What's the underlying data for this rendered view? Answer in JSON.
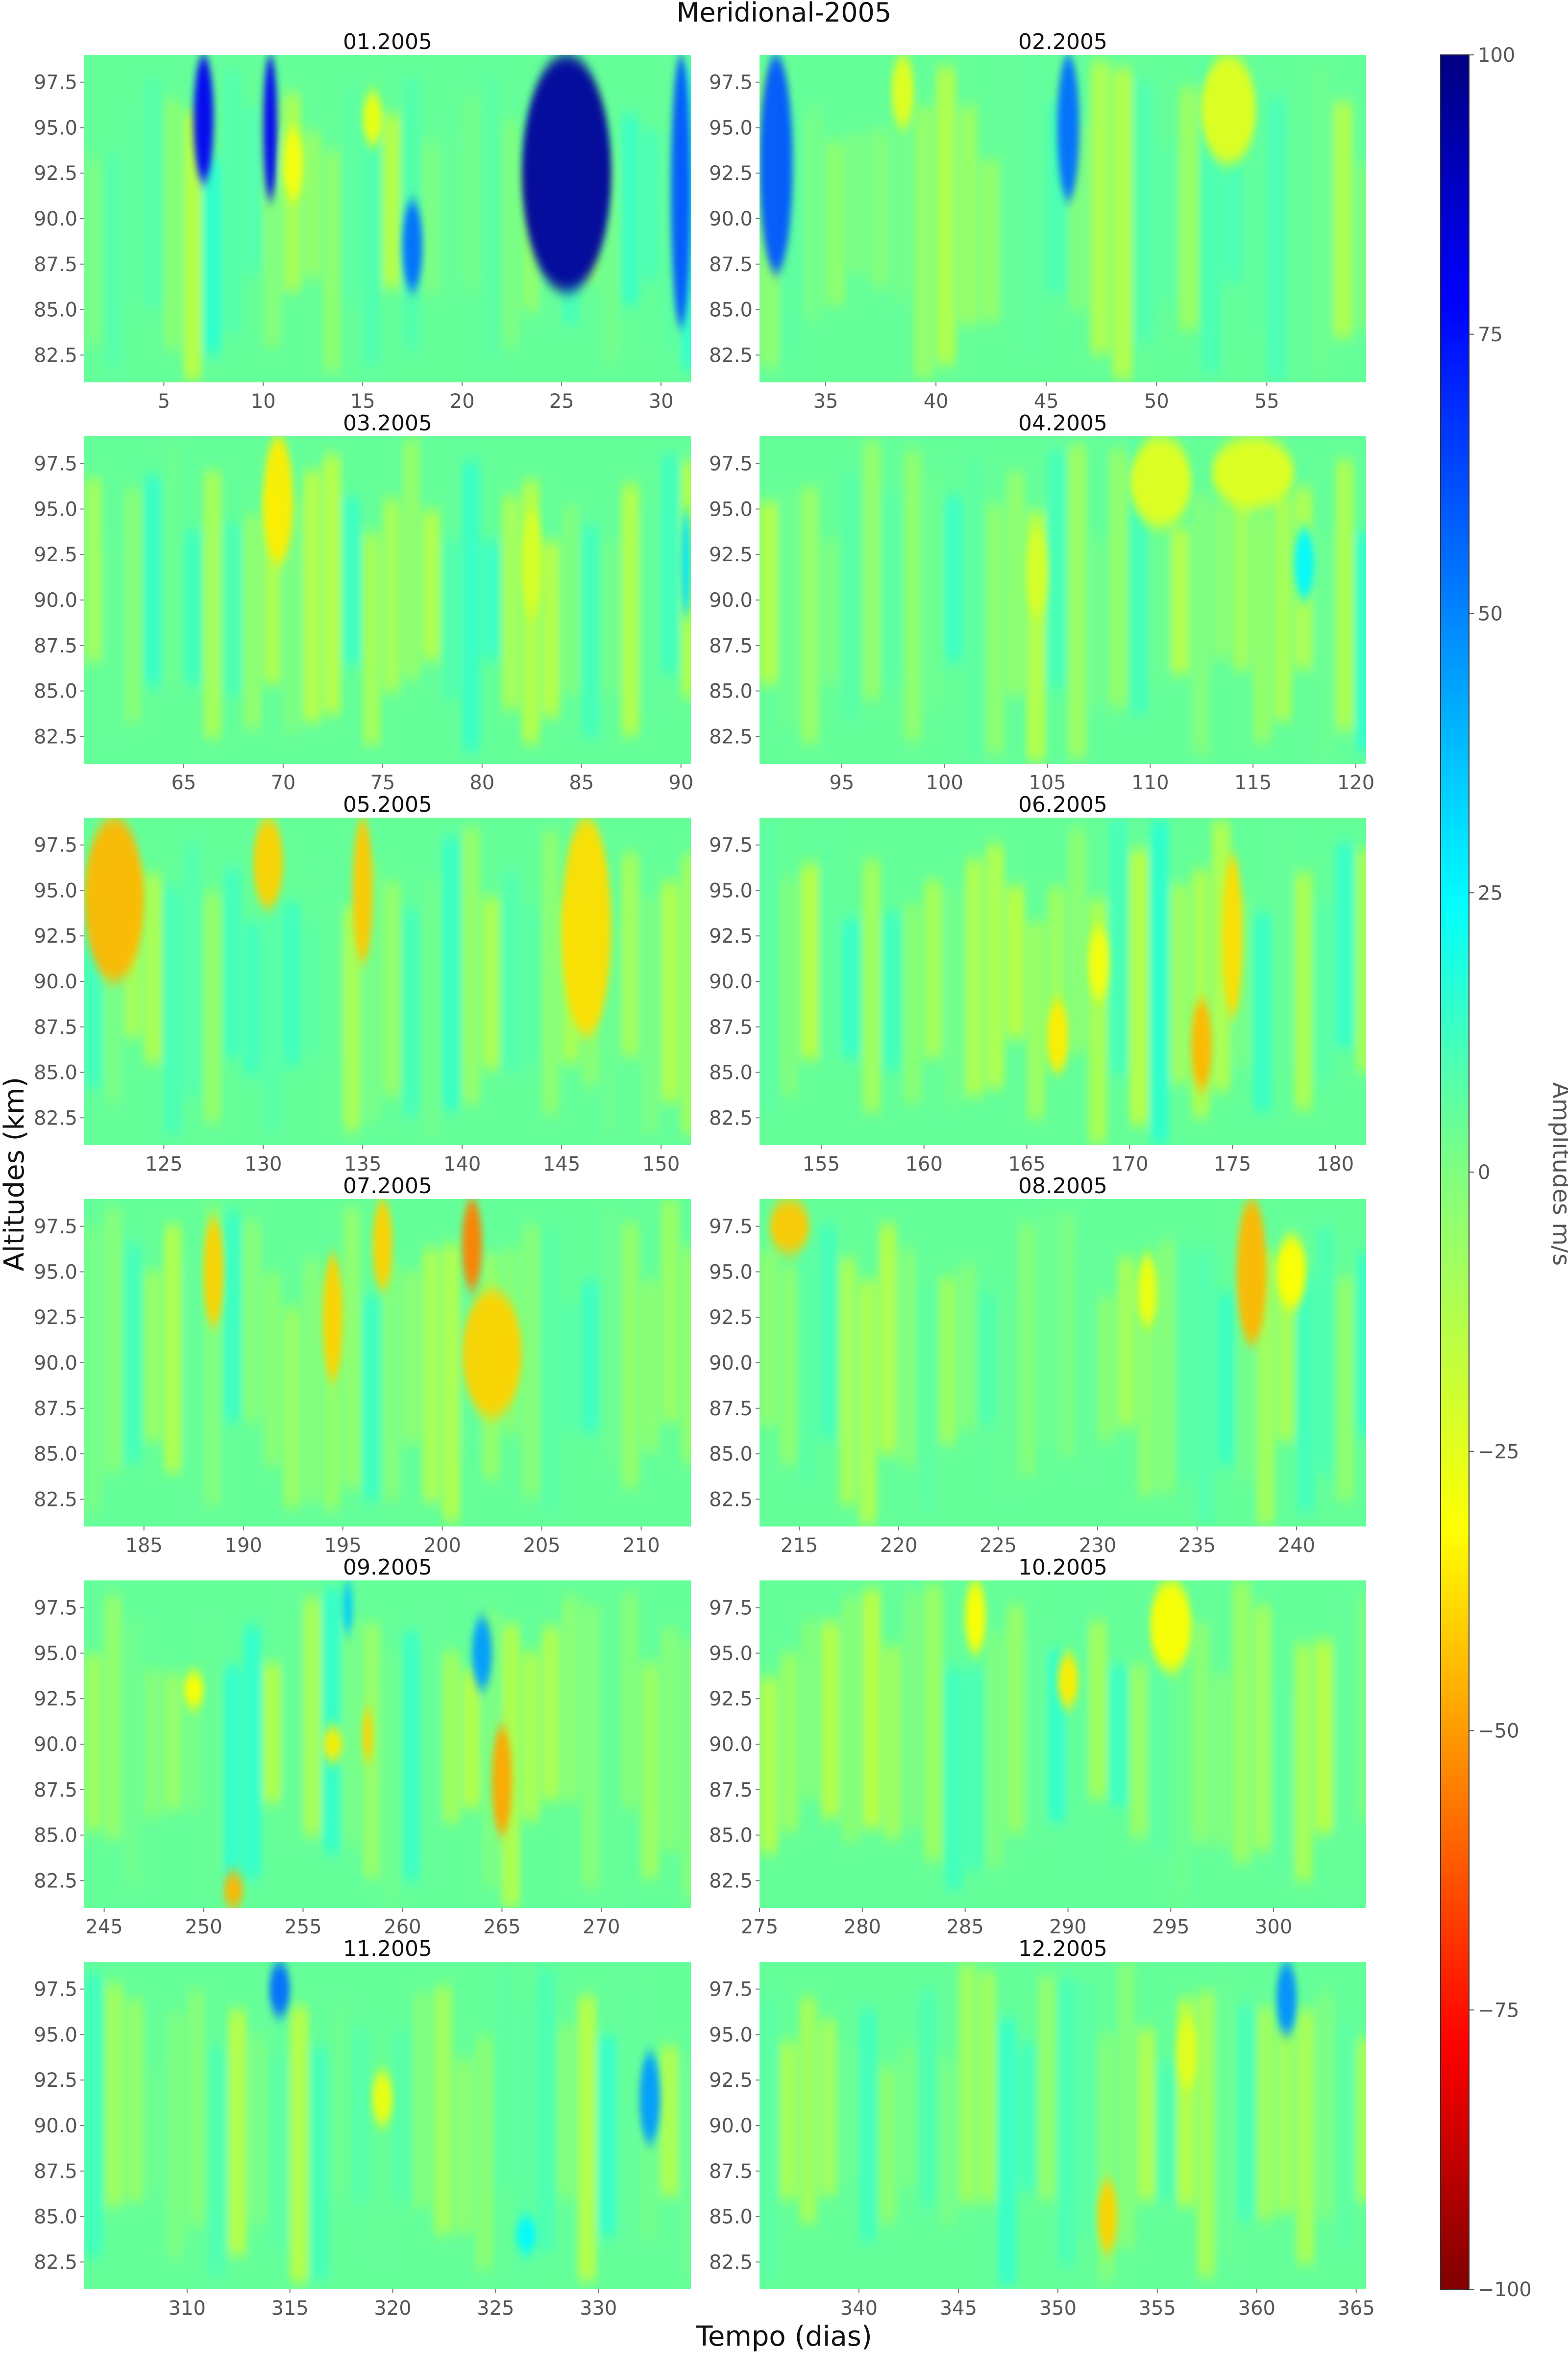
{
  "chart_data": {
    "type": "heatmap",
    "title": "Meridional-2005",
    "xlabel": "Tempo (dias)",
    "ylabel": "Altitudes (km)",
    "colorbar": {
      "label": "Amplitudes m/s",
      "range": [
        -100,
        100
      ],
      "ticks": [
        "100",
        "75",
        "50",
        "25",
        "0",
        "−25",
        "−50",
        "−75",
        "−100"
      ],
      "colormap": "jet"
    },
    "y_ticks": [
      "97.5",
      "95.0",
      "92.5",
      "90.0",
      "87.5",
      "85.0",
      "82.5"
    ],
    "y_tick_values": [
      97.5,
      95.0,
      92.5,
      90.0,
      87.5,
      85.0,
      82.5
    ],
    "ylim": [
      81,
      99
    ],
    "panels": [
      {
        "title": "01.2005",
        "xlim": [
          1,
          31.5
        ],
        "x_ticks": [
          5,
          10,
          15,
          20,
          25,
          30
        ],
        "features": [
          {
            "x": [
              23,
              27.5
            ],
            "y": [
              86,
              99
            ],
            "value": 95
          },
          {
            "x": [
              6.5,
              7.5
            ],
            "y": [
              92,
              99
            ],
            "value": 80
          },
          {
            "x": [
              10,
              10.7
            ],
            "y": [
              91,
              99
            ],
            "value": 80
          },
          {
            "x": [
              17,
              18
            ],
            "y": [
              86,
              91
            ],
            "value": 55
          },
          {
            "x": [
              11,
              12
            ],
            "y": [
              91,
              95
            ],
            "value": -30
          },
          {
            "x": [
              15,
              16
            ],
            "y": [
              94,
              97
            ],
            "value": -28
          },
          {
            "x": [
              30.5,
              31.5
            ],
            "y": [
              84,
              99
            ],
            "value": 60
          }
        ]
      },
      {
        "title": "02.2005",
        "xlim": [
          32,
          59.5
        ],
        "x_ticks": [
          35,
          40,
          45,
          50,
          55
        ],
        "features": [
          {
            "x": [
              32,
              33.5
            ],
            "y": [
              87,
              99
            ],
            "value": 60
          },
          {
            "x": [
              45.5,
              46.5
            ],
            "y": [
              91,
              99
            ],
            "value": 55
          },
          {
            "x": [
              52,
              54.5
            ],
            "y": [
              93,
              99
            ],
            "value": -25
          },
          {
            "x": [
              38,
              39
            ],
            "y": [
              95,
              99
            ],
            "value": -25
          }
        ]
      },
      {
        "title": "03.2005",
        "xlim": [
          60,
          90.5
        ],
        "x_ticks": [
          65,
          70,
          75,
          80,
          85,
          90
        ],
        "features": [
          {
            "x": [
              69,
              70.5
            ],
            "y": [
              92,
              99
            ],
            "value": -35
          },
          {
            "x": [
              82,
              83
            ],
            "y": [
              89,
              95
            ],
            "value": -22
          },
          {
            "x": [
              90,
              90.5
            ],
            "y": [
              89,
              95
            ],
            "value": 30
          }
        ]
      },
      {
        "title": "04.2005",
        "xlim": [
          91,
          120.5
        ],
        "x_ticks": [
          95,
          100,
          105,
          110,
          115,
          120
        ],
        "features": [
          {
            "x": [
              109,
              112
            ],
            "y": [
              94,
              99
            ],
            "value": -25
          },
          {
            "x": [
              113,
              117
            ],
            "y": [
              95,
              99
            ],
            "value": -25
          },
          {
            "x": [
              104,
              105
            ],
            "y": [
              89,
              94
            ],
            "value": -22
          },
          {
            "x": [
              117,
              118
            ],
            "y": [
              90,
              94
            ],
            "value": 25
          }
        ]
      },
      {
        "title": "05.2005",
        "xlim": [
          121,
          151.5
        ],
        "x_ticks": [
          125,
          130,
          135,
          140,
          145,
          150
        ],
        "features": [
          {
            "x": [
              121,
              124
            ],
            "y": [
              90,
              99
            ],
            "value": -45
          },
          {
            "x": [
              129.5,
              131
            ],
            "y": [
              94,
              99
            ],
            "value": -40
          },
          {
            "x": [
              134.5,
              135.5
            ],
            "y": [
              91,
              99
            ],
            "value": -42
          },
          {
            "x": [
              145,
              147.5
            ],
            "y": [
              87,
              99
            ],
            "value": -38
          }
        ]
      },
      {
        "title": "06.2005",
        "xlim": [
          152,
          181.5
        ],
        "x_ticks": [
          155,
          160,
          165,
          170,
          175,
          180
        ],
        "features": [
          {
            "x": [
              173,
              174
            ],
            "y": [
              84,
              89
            ],
            "value": -45
          },
          {
            "x": [
              174.5,
              175.5
            ],
            "y": [
              88,
              97
            ],
            "value": -38
          },
          {
            "x": [
              166,
              167
            ],
            "y": [
              85,
              89
            ],
            "value": -35
          },
          {
            "x": [
              168,
              169
            ],
            "y": [
              89,
              93
            ],
            "value": -30
          }
        ]
      },
      {
        "title": "07.2005",
        "xlim": [
          182,
          212.5
        ],
        "x_ticks": [
          185,
          190,
          195,
          200,
          205,
          210
        ],
        "features": [
          {
            "x": [
              201,
              202
            ],
            "y": [
              94,
              99
            ],
            "value": -55
          },
          {
            "x": [
              201,
              204
            ],
            "y": [
              87,
              94
            ],
            "value": -40
          },
          {
            "x": [
              188,
              189
            ],
            "y": [
              92,
              98
            ],
            "value": -40
          },
          {
            "x": [
              194,
              195
            ],
            "y": [
              89,
              96
            ],
            "value": -40
          },
          {
            "x": [
              196.5,
              197.5
            ],
            "y": [
              94,
              99
            ],
            "value": -40
          }
        ]
      },
      {
        "title": "08.2005",
        "xlim": [
          213,
          243.5
        ],
        "x_ticks": [
          215,
          220,
          225,
          230,
          235,
          240
        ],
        "features": [
          {
            "x": [
              213.5,
              215.5
            ],
            "y": [
              96,
              99
            ],
            "value": -42
          },
          {
            "x": [
              237,
              238.5
            ],
            "y": [
              91,
              99
            ],
            "value": -45
          },
          {
            "x": [
              239,
              240.5
            ],
            "y": [
              93,
              97
            ],
            "value": -32
          },
          {
            "x": [
              232,
              233
            ],
            "y": [
              92,
              96
            ],
            "value": -28
          }
        ]
      },
      {
        "title": "09.2005",
        "xlim": [
          244,
          274.5
        ],
        "x_ticks": [
          245,
          250,
          255,
          260,
          265,
          270
        ],
        "features": [
          {
            "x": [
              264.5,
              265.5
            ],
            "y": [
              85,
              91
            ],
            "value": -48
          },
          {
            "x": [
              258,
              258.5
            ],
            "y": [
              89,
              92
            ],
            "value": -40
          },
          {
            "x": [
              256,
              257
            ],
            "y": [
              89,
              91
            ],
            "value": -35
          },
          {
            "x": [
              251,
              252
            ],
            "y": [
              81,
              83
            ],
            "value": -45
          },
          {
            "x": [
              249,
              250
            ],
            "y": [
              92,
              94
            ],
            "value": -32
          },
          {
            "x": [
              263.5,
              264.5
            ],
            "y": [
              93,
              97
            ],
            "value": 45
          },
          {
            "x": [
              257,
              257.5
            ],
            "y": [
              96,
              99
            ],
            "value": 35
          }
        ]
      },
      {
        "title": "10.2005",
        "xlim": [
          275,
          304.5
        ],
        "x_ticks": [
          275,
          280,
          285,
          290,
          295,
          300
        ],
        "features": [
          {
            "x": [
              289.5,
              290.5
            ],
            "y": [
              92,
              95
            ],
            "value": -35
          },
          {
            "x": [
              294,
              296
            ],
            "y": [
              94,
              99
            ],
            "value": -32
          },
          {
            "x": [
              285,
              286
            ],
            "y": [
              95,
              99
            ],
            "value": -32
          }
        ]
      },
      {
        "title": "11.2005",
        "xlim": [
          305,
          334.5
        ],
        "x_ticks": [
          310,
          315,
          320,
          325,
          330
        ],
        "features": [
          {
            "x": [
              314,
              315
            ],
            "y": [
              96,
              99
            ],
            "value": 55
          },
          {
            "x": [
              332,
              333
            ],
            "y": [
              89,
              94
            ],
            "value": 45
          },
          {
            "x": [
              319,
              320
            ],
            "y": [
              90,
              93
            ],
            "value": -28
          },
          {
            "x": [
              326,
              327
            ],
            "y": [
              83,
              85
            ],
            "value": 25
          }
        ]
      },
      {
        "title": "12.2005",
        "xlim": [
          335,
          365.5
        ],
        "x_ticks": [
          340,
          345,
          350,
          355,
          360,
          365
        ],
        "features": [
          {
            "x": [
              352,
              353
            ],
            "y": [
              83,
              87
            ],
            "value": -40
          },
          {
            "x": [
              361,
              362
            ],
            "y": [
              95,
              99
            ],
            "value": 48
          },
          {
            "x": [
              356,
              357
            ],
            "y": [
              92,
              96
            ],
            "value": -25
          }
        ]
      }
    ]
  }
}
